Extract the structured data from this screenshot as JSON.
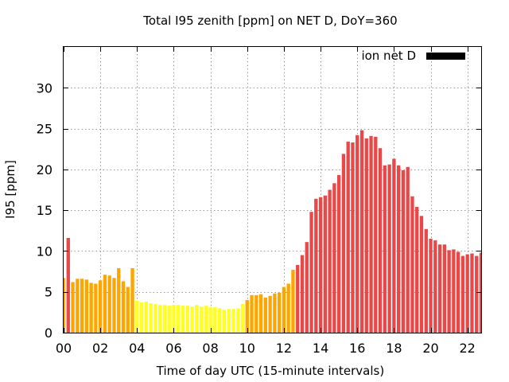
{
  "chart_data": {
    "type": "bar",
    "title": "Total I95 zenith [ppm] on NET D, DoY=360",
    "xlabel": "Time of day UTC (15-minute intervals)",
    "ylabel": "I95 [ppm]",
    "legend": {
      "label": "ion net D",
      "color": "#000000",
      "position": "top-right"
    },
    "xlim": [
      0,
      22.75
    ],
    "ylim": [
      0,
      35
    ],
    "x_ticks": [
      0,
      2,
      4,
      6,
      8,
      10,
      12,
      14,
      16,
      18,
      20,
      22
    ],
    "x_tick_labels": [
      "00",
      "02",
      "04",
      "06",
      "08",
      "10",
      "12",
      "14",
      "16",
      "18",
      "20",
      "22"
    ],
    "y_ticks": [
      0,
      5,
      10,
      15,
      20,
      25,
      30
    ],
    "y_tick_labels": [
      "0",
      "5",
      "10",
      "15",
      "20",
      "25",
      "30"
    ],
    "grid": true,
    "bar_interval_hours": 0.25,
    "color_thresholds": [
      {
        "max": 4,
        "color": "#ffff22"
      },
      {
        "max": 8,
        "color": "#ffa500"
      },
      {
        "max": 1000,
        "color": "#e84848"
      }
    ],
    "values": [
      6.7,
      11.6,
      6.2,
      6.6,
      6.6,
      6.5,
      6.1,
      6.0,
      6.4,
      7.1,
      7.0,
      6.7,
      7.9,
      6.3,
      5.6,
      7.9,
      3.9,
      3.7,
      3.8,
      3.6,
      3.5,
      3.4,
      3.4,
      3.3,
      3.4,
      3.4,
      3.3,
      3.3,
      3.2,
      3.4,
      3.2,
      3.3,
      3.1,
      3.1,
      3.0,
      2.8,
      2.9,
      2.9,
      3.0,
      3.5,
      4.0,
      4.6,
      4.6,
      4.7,
      4.3,
      4.5,
      4.8,
      4.9,
      5.6,
      6.0,
      7.7,
      8.3,
      9.5,
      11.1,
      14.8,
      16.4,
      16.6,
      16.8,
      17.5,
      18.3,
      19.3,
      21.9,
      23.4,
      23.3,
      24.2,
      24.8,
      23.8,
      24.1,
      24.0,
      22.6,
      20.5,
      20.6,
      21.3,
      20.5,
      19.9,
      20.3,
      16.7,
      15.4,
      14.3,
      12.7,
      11.5,
      11.3,
      10.8,
      10.8,
      10.1,
      10.2,
      9.9,
      9.4,
      9.6,
      9.7,
      9.4,
      9.8,
      9.7,
      9.1
    ]
  }
}
